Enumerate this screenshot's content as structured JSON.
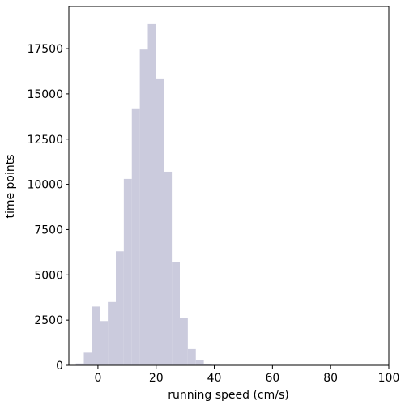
{
  "chart_data": {
    "type": "histogram",
    "xlabel": "running speed (cm/s)",
    "ylabel": "time points",
    "bins": [
      -7.6,
      -4.85,
      -2.1,
      0.65,
      3.4,
      6.15,
      8.9,
      11.65,
      14.4,
      17.15,
      19.9,
      22.65,
      25.4,
      28.15,
      30.9,
      33.65,
      36.4,
      39.15,
      41.9,
      44.65,
      47.4,
      50.15,
      52.9,
      55.65,
      58.4,
      61.15,
      63.9,
      66.65,
      69.4,
      72.15,
      74.9,
      77.65
    ],
    "values": [
      100,
      700,
      3250,
      2450,
      3500,
      6300,
      10300,
      14200,
      17450,
      18850,
      15850,
      10700,
      5700,
      2600,
      900,
      300,
      80,
      30,
      20,
      10,
      5,
      5,
      5,
      5,
      5,
      5,
      5,
      5,
      5,
      10,
      5
    ],
    "color": "#cbcbdd",
    "xlim": [
      -10,
      100
    ],
    "xticks": [
      0,
      20,
      40,
      60,
      80,
      100
    ],
    "ylim": [
      0,
      19830
    ],
    "yticks": [
      0,
      2500,
      5000,
      7500,
      10000,
      12500,
      15000,
      17500
    ],
    "grid": false
  }
}
